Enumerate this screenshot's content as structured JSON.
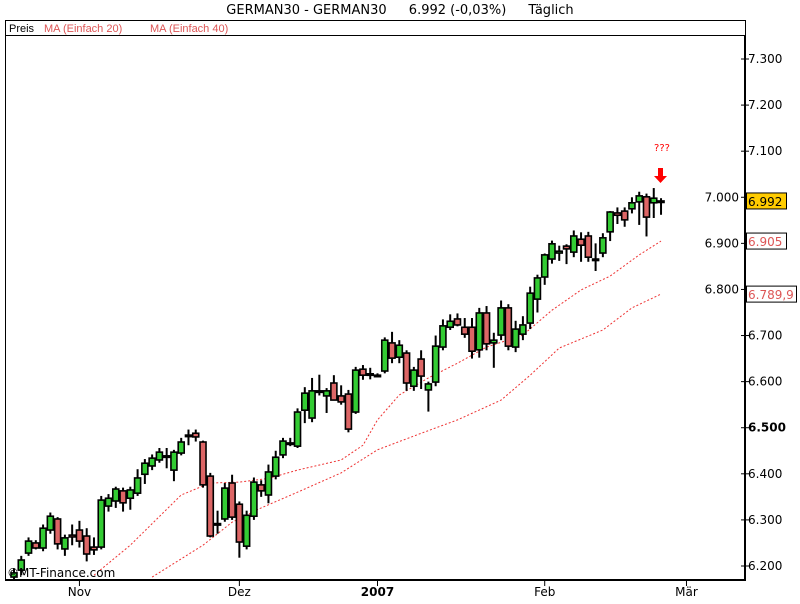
{
  "header": {
    "symbol": "GERMAN30 - GERMAN30",
    "price": "6.992 (-0,03%)",
    "interval": "Täglich"
  },
  "legend": {
    "price": "Preis",
    "ma20": "MA (Einfach 20)",
    "ma40": "MA (Einfach 40)"
  },
  "watermark": "©MT-Finance.com",
  "annotation": {
    "text": "???",
    "icon": "down-arrow-icon",
    "color": "#ff0000"
  },
  "colors": {
    "up": "#33cc33",
    "down": "#dd6666",
    "ma": "#ee3333",
    "last_price_box": "#ffcc00"
  },
  "chart_data": {
    "type": "candlestick",
    "title": "GERMAN30 - GERMAN30",
    "y_ticks": [
      "7.300",
      "7.200",
      "7.100",
      "7.000",
      "6.900",
      "6.800",
      "6.700",
      "6.600",
      "6.500",
      "6.400",
      "6.300",
      "6.200"
    ],
    "ylim": [
      6170,
      7330
    ],
    "x_labels": [
      {
        "candle": 9,
        "label": "Nov",
        "bold": false
      },
      {
        "candle": 31,
        "label": "Dez",
        "bold": false
      },
      {
        "candle": 50,
        "label": "2007",
        "bold": true
      },
      {
        "candle": 73,
        "label": "Feb",
        "bold": false
      },
      {
        "candle": 92.5,
        "label": "Mär",
        "bold": false
      }
    ],
    "candles": [
      [
        6176,
        6195,
        6168,
        6185
      ],
      [
        6191,
        6222,
        6180,
        6213
      ],
      [
        6228,
        6262,
        6222,
        6254
      ],
      [
        6250,
        6256,
        6236,
        6239
      ],
      [
        6239,
        6290,
        6232,
        6282
      ],
      [
        6278,
        6316,
        6270,
        6308
      ],
      [
        6302,
        6306,
        6236,
        6248
      ],
      [
        6237,
        6268,
        6222,
        6261
      ],
      [
        6267,
        6290,
        6245,
        6263
      ],
      [
        6278,
        6298,
        6240,
        6254
      ],
      [
        6265,
        6282,
        6210,
        6226
      ],
      [
        6241,
        6262,
        6224,
        6235
      ],
      [
        6241,
        6352,
        6236,
        6343
      ],
      [
        6330,
        6356,
        6318,
        6347
      ],
      [
        6341,
        6372,
        6326,
        6367
      ],
      [
        6363,
        6370,
        6318,
        6337
      ],
      [
        6347,
        6372,
        6322,
        6365
      ],
      [
        6358,
        6410,
        6352,
        6391
      ],
      [
        6399,
        6432,
        6378,
        6423
      ],
      [
        6417,
        6442,
        6408,
        6434
      ],
      [
        6430,
        6456,
        6424,
        6447
      ],
      [
        6439,
        6456,
        6412,
        6437
      ],
      [
        6408,
        6452,
        6384,
        6447
      ],
      [
        6445,
        6478,
        6440,
        6469
      ],
      [
        6482,
        6496,
        6462,
        6484
      ],
      [
        6488,
        6496,
        6470,
        6480
      ],
      [
        6469,
        6472,
        6370,
        6376
      ],
      [
        6395,
        6402,
        6262,
        6265
      ],
      [
        6292,
        6320,
        6270,
        6290
      ],
      [
        6302,
        6380,
        6296,
        6369
      ],
      [
        6380,
        6398,
        6300,
        6306
      ],
      [
        6334,
        6340,
        6218,
        6252
      ],
      [
        6243,
        6320,
        6236,
        6310
      ],
      [
        6308,
        6392,
        6300,
        6382
      ],
      [
        6376,
        6386,
        6350,
        6363
      ],
      [
        6354,
        6420,
        6336,
        6404
      ],
      [
        6395,
        6450,
        6388,
        6436
      ],
      [
        6441,
        6478,
        6434,
        6471
      ],
      [
        6465,
        6478,
        6460,
        6467
      ],
      [
        6460,
        6542,
        6456,
        6534
      ],
      [
        6538,
        6588,
        6510,
        6575
      ],
      [
        6521,
        6608,
        6512,
        6580
      ],
      [
        6578,
        6615,
        6570,
        6580
      ],
      [
        6569,
        6586,
        6532,
        6580
      ],
      [
        6597,
        6614,
        6560,
        6560
      ],
      [
        6569,
        6592,
        6550,
        6556
      ],
      [
        6573,
        6582,
        6490,
        6497
      ],
      [
        6534,
        6632,
        6530,
        6625
      ],
      [
        6627,
        6636,
        6604,
        6614
      ],
      [
        6617,
        6630,
        6605,
        6615
      ],
      [
        6614,
        6618,
        6612,
        6613
      ],
      [
        6623,
        6696,
        6618,
        6690
      ],
      [
        6684,
        6708,
        6640,
        6651
      ],
      [
        6653,
        6690,
        6640,
        6679
      ],
      [
        6662,
        6668,
        6580,
        6597
      ],
      [
        6590,
        6632,
        6580,
        6625
      ],
      [
        6649,
        6668,
        6584,
        6612
      ],
      [
        6582,
        6600,
        6535,
        6595
      ],
      [
        6599,
        6700,
        6590,
        6677
      ],
      [
        6675,
        6735,
        6668,
        6721
      ],
      [
        6718,
        6746,
        6712,
        6731
      ],
      [
        6736,
        6748,
        6720,
        6723
      ],
      [
        6718,
        6738,
        6695,
        6703
      ],
      [
        6718,
        6738,
        6650,
        6666
      ],
      [
        6669,
        6760,
        6652,
        6749
      ],
      [
        6749,
        6764,
        6668,
        6682
      ],
      [
        6684,
        6706,
        6630,
        6690
      ],
      [
        6701,
        6776,
        6690,
        6760
      ],
      [
        6760,
        6768,
        6668,
        6677
      ],
      [
        6675,
        6732,
        6664,
        6714
      ],
      [
        6703,
        6742,
        6690,
        6723
      ],
      [
        6727,
        6806,
        6714,
        6792
      ],
      [
        6779,
        6832,
        6750,
        6825
      ],
      [
        6827,
        6878,
        6810,
        6875
      ],
      [
        6866,
        6906,
        6856,
        6899
      ],
      [
        6879,
        6895,
        6862,
        6883
      ],
      [
        6894,
        6898,
        6855,
        6888
      ],
      [
        6881,
        6928,
        6870,
        6916
      ],
      [
        6909,
        6924,
        6860,
        6896
      ],
      [
        6916,
        6925,
        6860,
        6870
      ],
      [
        6866,
        6900,
        6840,
        6864
      ],
      [
        6879,
        6922,
        6870,
        6912
      ],
      [
        6925,
        6970,
        6905,
        6968
      ],
      [
        6966,
        6978,
        6942,
        6961
      ],
      [
        6970,
        6978,
        6936,
        6951
      ],
      [
        6975,
        7000,
        6965,
        6988
      ],
      [
        6990,
        7012,
        6940,
        7003
      ],
      [
        7001,
        7008,
        6915,
        6957
      ],
      [
        6988,
        7020,
        6955,
        6998
      ],
      [
        6992,
        6998,
        6962,
        6992
      ]
    ],
    "ma20": [
      [
        11,
        6180
      ],
      [
        16,
        6245
      ],
      [
        23,
        6354
      ],
      [
        27,
        6380
      ],
      [
        31,
        6382
      ],
      [
        35,
        6390
      ],
      [
        39,
        6408
      ],
      [
        45,
        6430
      ],
      [
        48,
        6462
      ],
      [
        50,
        6517
      ],
      [
        53,
        6571
      ],
      [
        57,
        6608
      ],
      [
        61,
        6640
      ],
      [
        65,
        6675
      ],
      [
        70,
        6701
      ],
      [
        74,
        6755
      ],
      [
        78,
        6799
      ],
      [
        82,
        6829
      ],
      [
        86,
        6875
      ],
      [
        89,
        6905
      ]
    ],
    "ma40": [
      [
        19,
        6176
      ],
      [
        26,
        6245
      ],
      [
        30,
        6295
      ],
      [
        34,
        6326
      ],
      [
        39,
        6360
      ],
      [
        45,
        6402
      ],
      [
        50,
        6452
      ],
      [
        56,
        6488
      ],
      [
        61,
        6517
      ],
      [
        67,
        6560
      ],
      [
        71,
        6614
      ],
      [
        75,
        6673
      ],
      [
        81,
        6712
      ],
      [
        85,
        6760
      ],
      [
        89,
        6790
      ]
    ],
    "last_values": {
      "price": "6.992",
      "ma20": "6.905",
      "ma40": "6.789,9"
    }
  }
}
